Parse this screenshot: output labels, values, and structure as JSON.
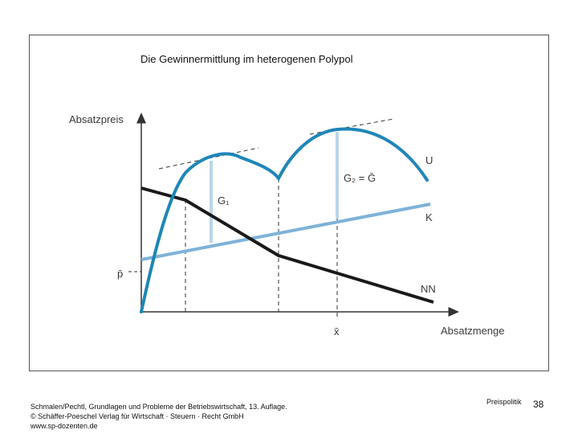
{
  "slide": {
    "title": "Die Gewinnermittlung im heterogenen Polypol",
    "footer_lines": [
      "Schmalen/Pechtl, Grundlagen und Probleme der Betriebswirtschaft, 13. Auflage.",
      "© Schäffer-Poeschel Verlag für Wirtschaft · Steuern · Recht GmbH",
      "www.sp-dozenten.de"
    ],
    "section_label": "Preispolitik",
    "page_number": "38"
  },
  "diagram": {
    "y_axis_label": "Absatzpreis",
    "x_axis_label": "Absatzmenge",
    "p_bar_label": "p̄",
    "x_bar_label": "x̄",
    "curve_labels": {
      "revenue": "U",
      "cost": "K",
      "demand": "NN"
    },
    "gain_labels": {
      "g1": "G₁",
      "g2": "G₂ = Ḡ"
    },
    "colors": {
      "revenue": "#1f86b8",
      "cost": "#7fb2d8",
      "demand": "#1a1a1a",
      "gain_bars": "#b9d6ea",
      "axes": "#333333"
    }
  }
}
